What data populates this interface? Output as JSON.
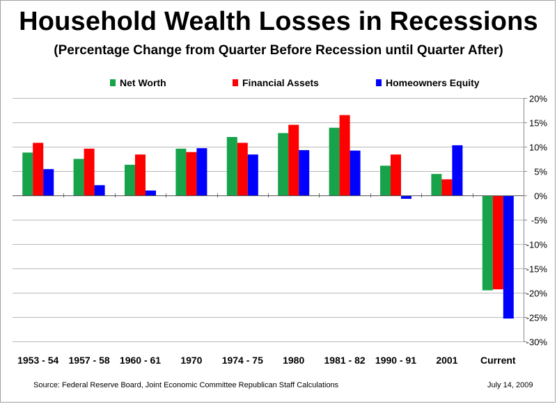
{
  "chart_data": {
    "type": "bar",
    "title": "Household Wealth Losses in Recessions",
    "subtitle": "(Percentage Change from Quarter Before Recession until Quarter After)",
    "categories": [
      "1953 - 54",
      "1957 - 58",
      "1960 - 61",
      "1970",
      "1974 - 75",
      "1980",
      "1981 - 82",
      "1990 - 91",
      "2001",
      "Current"
    ],
    "series": [
      {
        "name": "Net Worth",
        "color": "#16a34a",
        "values": [
          8.8,
          7.5,
          6.3,
          9.6,
          12.0,
          12.8,
          13.9,
          6.1,
          4.4,
          -19.5
        ]
      },
      {
        "name": "Financial Assets",
        "color": "#ff0000",
        "values": [
          10.8,
          9.6,
          8.4,
          8.9,
          10.8,
          14.5,
          16.5,
          8.4,
          3.3,
          -19.3
        ]
      },
      {
        "name": "Homeowners Equity",
        "color": "#0000ff",
        "values": [
          5.4,
          2.1,
          1.0,
          9.7,
          8.4,
          9.3,
          9.2,
          -0.7,
          10.3,
          -25.3
        ]
      }
    ],
    "ylim": [
      -30,
      20
    ],
    "yticks": [
      20,
      15,
      10,
      5,
      0,
      -5,
      -10,
      -15,
      -20,
      -25,
      -30
    ],
    "ytick_labels": [
      "20%",
      "15%",
      "10%",
      "5%",
      "0%",
      "-5%",
      "-10%",
      "-15%",
      "-20%",
      "-25%",
      "-30%"
    ],
    "grid": true,
    "legend_position": "top"
  },
  "footer": {
    "source": "Source:  Federal Reserve Board, Joint Economic Committee Republican Staff Calculations",
    "date": "July 14, 2009"
  }
}
